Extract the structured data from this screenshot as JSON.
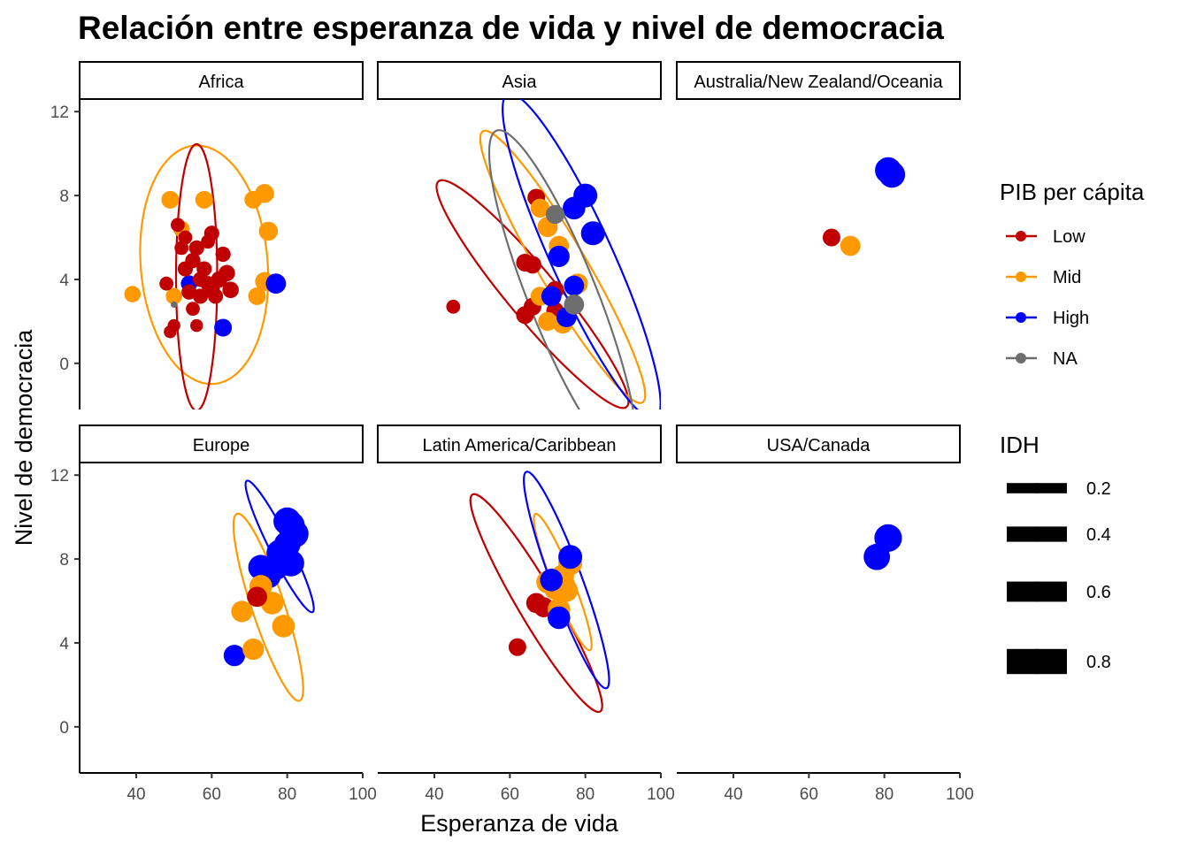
{
  "chart_data": {
    "type": "scatter",
    "title": "Relación entre esperanza de vida y nivel de democracia",
    "xlabel": "Esperanza de vida",
    "ylabel": "Nivel de democracia",
    "xlim": [
      25,
      100
    ],
    "ylim": [
      -2.2,
      12.6
    ],
    "x_ticks": [
      40,
      60,
      80,
      100
    ],
    "y_ticks": [
      0,
      4,
      8,
      12
    ],
    "grid": false,
    "legend_position": "right",
    "color_legend": {
      "title": "PIB per cápita",
      "entries": [
        {
          "label": "Low",
          "color": "#c00000"
        },
        {
          "label": "Mid",
          "color": "#ff9900"
        },
        {
          "label": "High",
          "color": "#0000ff"
        },
        {
          "label": "NA",
          "color": "#6e6e6e"
        }
      ]
    },
    "size_legend": {
      "title": "IDH",
      "entries": [
        {
          "label": "0.2",
          "value": 0.2
        },
        {
          "label": "0.4",
          "value": 0.4
        },
        {
          "label": "0.6",
          "value": 0.6
        },
        {
          "label": "0.8",
          "value": 0.8
        }
      ]
    },
    "panels": [
      {
        "name": "Africa",
        "points": [
          {
            "g": "Mid",
            "x": 39,
            "y": 3.3,
            "s": 0.45
          },
          {
            "g": "Mid",
            "x": 49,
            "y": 7.8,
            "s": 0.5
          },
          {
            "g": "Mid",
            "x": 58,
            "y": 7.8,
            "s": 0.5
          },
          {
            "g": "Mid",
            "x": 71,
            "y": 7.8,
            "s": 0.5
          },
          {
            "g": "Mid",
            "x": 74,
            "y": 8.1,
            "s": 0.55
          },
          {
            "g": "Mid",
            "x": 75,
            "y": 6.3,
            "s": 0.55
          },
          {
            "g": "Mid",
            "x": 74,
            "y": 3.9,
            "s": 0.55
          },
          {
            "g": "Mid",
            "x": 72,
            "y": 3.2,
            "s": 0.5
          },
          {
            "g": "Mid",
            "x": 50,
            "y": 3.2,
            "s": 0.45
          },
          {
            "g": "Mid",
            "x": 52,
            "y": 6.4,
            "s": 0.45
          },
          {
            "g": "High",
            "x": 77,
            "y": 3.8,
            "s": 0.6
          },
          {
            "g": "High",
            "x": 63,
            "y": 1.7,
            "s": 0.5
          },
          {
            "g": "High",
            "x": 54,
            "y": 3.8,
            "s": 0.45
          },
          {
            "g": "NA",
            "x": 50,
            "y": 2.8,
            "s": 0.05
          },
          {
            "g": "Low",
            "x": 48,
            "y": 3.8,
            "s": 0.35
          },
          {
            "g": "Low",
            "x": 49,
            "y": 1.5,
            "s": 0.3
          },
          {
            "g": "Low",
            "x": 50,
            "y": 1.8,
            "s": 0.3
          },
          {
            "g": "Low",
            "x": 51,
            "y": 6.6,
            "s": 0.35
          },
          {
            "g": "Low",
            "x": 52,
            "y": 5.5,
            "s": 0.35
          },
          {
            "g": "Low",
            "x": 53,
            "y": 6.0,
            "s": 0.35
          },
          {
            "g": "Low",
            "x": 53,
            "y": 4.5,
            "s": 0.4
          },
          {
            "g": "Low",
            "x": 54,
            "y": 3.4,
            "s": 0.4
          },
          {
            "g": "Low",
            "x": 55,
            "y": 4.9,
            "s": 0.4
          },
          {
            "g": "Low",
            "x": 55,
            "y": 2.6,
            "s": 0.35
          },
          {
            "g": "Low",
            "x": 56,
            "y": 1.8,
            "s": 0.3
          },
          {
            "g": "Low",
            "x": 56,
            "y": 5.5,
            "s": 0.4
          },
          {
            "g": "Low",
            "x": 57,
            "y": 3.2,
            "s": 0.4
          },
          {
            "g": "Low",
            "x": 58,
            "y": 4.5,
            "s": 0.4
          },
          {
            "g": "Low",
            "x": 59,
            "y": 3.8,
            "s": 0.4
          },
          {
            "g": "Low",
            "x": 59,
            "y": 5.8,
            "s": 0.35
          },
          {
            "g": "Low",
            "x": 60,
            "y": 6.2,
            "s": 0.4
          },
          {
            "g": "Low",
            "x": 61,
            "y": 3.2,
            "s": 0.4
          },
          {
            "g": "Low",
            "x": 62,
            "y": 4.0,
            "s": 0.45
          },
          {
            "g": "Low",
            "x": 63,
            "y": 5.2,
            "s": 0.4
          },
          {
            "g": "Low",
            "x": 64,
            "y": 4.3,
            "s": 0.45
          },
          {
            "g": "Low",
            "x": 65,
            "y": 3.5,
            "s": 0.45
          },
          {
            "g": "Low",
            "x": 60,
            "y": 3.6,
            "s": 0.45
          },
          {
            "g": "Low",
            "x": 57,
            "y": 4.0,
            "s": 0.4
          }
        ],
        "ellipses": [
          {
            "g": "Mid",
            "cx": 58,
            "cy": 4.7,
            "rx": 37,
            "ry": 11.4,
            "rot": 12
          },
          {
            "g": "Low",
            "cx": 56,
            "cy": 4.1,
            "rx": 12,
            "ry": 12.7,
            "rot": -2
          }
        ]
      },
      {
        "name": "Asia",
        "points": [
          {
            "g": "Low",
            "x": 45,
            "y": 2.7,
            "s": 0.35
          },
          {
            "g": "Low",
            "x": 64,
            "y": 4.8,
            "s": 0.5
          },
          {
            "g": "Low",
            "x": 67,
            "y": 7.9,
            "s": 0.5
          },
          {
            "g": "Low",
            "x": 66,
            "y": 4.7,
            "s": 0.5
          },
          {
            "g": "Low",
            "x": 64,
            "y": 2.3,
            "s": 0.5
          },
          {
            "g": "Low",
            "x": 66,
            "y": 2.7,
            "s": 0.5
          },
          {
            "g": "Low",
            "x": 72,
            "y": 3.5,
            "s": 0.5
          },
          {
            "g": "Low",
            "x": 72,
            "y": 2.5,
            "s": 0.5
          },
          {
            "g": "Mid",
            "x": 68,
            "y": 7.4,
            "s": 0.55
          },
          {
            "g": "Mid",
            "x": 70,
            "y": 6.5,
            "s": 0.6
          },
          {
            "g": "Mid",
            "x": 73,
            "y": 5.6,
            "s": 0.6
          },
          {
            "g": "Mid",
            "x": 70,
            "y": 2.0,
            "s": 0.55
          },
          {
            "g": "Mid",
            "x": 74,
            "y": 1.9,
            "s": 0.6
          },
          {
            "g": "Mid",
            "x": 78,
            "y": 3.8,
            "s": 0.6
          },
          {
            "g": "Mid",
            "x": 68,
            "y": 3.2,
            "s": 0.55
          },
          {
            "g": "High",
            "x": 77,
            "y": 7.4,
            "s": 0.7
          },
          {
            "g": "High",
            "x": 80,
            "y": 8.0,
            "s": 0.75
          },
          {
            "g": "High",
            "x": 82,
            "y": 6.2,
            "s": 0.75
          },
          {
            "g": "High",
            "x": 73,
            "y": 5.1,
            "s": 0.65
          },
          {
            "g": "High",
            "x": 71,
            "y": 3.2,
            "s": 0.6
          },
          {
            "g": "High",
            "x": 77,
            "y": 3.7,
            "s": 0.6
          },
          {
            "g": "High",
            "x": 75,
            "y": 2.2,
            "s": 0.6
          },
          {
            "g": "NA",
            "x": 72,
            "y": 7.1,
            "s": 0.55
          },
          {
            "g": "NA",
            "x": 77,
            "y": 2.8,
            "s": 0.6
          }
        ],
        "ellipses": [
          {
            "g": "Low",
            "cx": 66,
            "cy": 3.3,
            "rx": 14.5,
            "ry": 14,
            "rot": 1.2
          },
          {
            "g": "Mid",
            "cx": 74,
            "cy": 4.6,
            "rx": 14,
            "ry": 15,
            "rot": 1.7
          },
          {
            "g": "High",
            "cx": 79,
            "cy": 5.1,
            "rx": 18,
            "ry": 17,
            "rot": 2.2
          },
          {
            "g": "NA",
            "cx": 74,
            "cy": 3.2,
            "rx": 20,
            "ry": 17,
            "rot": 2.5
          }
        ]
      },
      {
        "name": "Australia/New Zealand/Oceania",
        "points": [
          {
            "g": "Low",
            "x": 66,
            "y": 6.0,
            "s": 0.5
          },
          {
            "g": "Mid",
            "x": 71,
            "y": 5.6,
            "s": 0.6
          },
          {
            "g": "High",
            "x": 81,
            "y": 9.2,
            "s": 0.85
          },
          {
            "g": "High",
            "x": 82,
            "y": 9.0,
            "s": 0.85
          }
        ],
        "ellipses": []
      },
      {
        "name": "Europe",
        "points": [
          {
            "g": "High",
            "x": 66,
            "y": 3.4,
            "s": 0.65
          },
          {
            "g": "High",
            "x": 73,
            "y": 7.6,
            "s": 0.8
          },
          {
            "g": "High",
            "x": 75,
            "y": 7.2,
            "s": 0.8
          },
          {
            "g": "High",
            "x": 77,
            "y": 7.6,
            "s": 0.8
          },
          {
            "g": "High",
            "x": 78,
            "y": 8.3,
            "s": 0.85
          },
          {
            "g": "High",
            "x": 80,
            "y": 8.7,
            "s": 0.85
          },
          {
            "g": "High",
            "x": 81,
            "y": 7.8,
            "s": 0.85
          },
          {
            "g": "High",
            "x": 80,
            "y": 9.8,
            "s": 0.9
          },
          {
            "g": "High",
            "x": 82,
            "y": 9.2,
            "s": 0.9
          },
          {
            "g": "High",
            "x": 81,
            "y": 9.6,
            "s": 0.9
          },
          {
            "g": "Mid",
            "x": 68,
            "y": 5.5,
            "s": 0.65
          },
          {
            "g": "Mid",
            "x": 71,
            "y": 3.7,
            "s": 0.65
          },
          {
            "g": "Mid",
            "x": 73,
            "y": 6.7,
            "s": 0.7
          },
          {
            "g": "Mid",
            "x": 76,
            "y": 5.9,
            "s": 0.7
          },
          {
            "g": "Mid",
            "x": 79,
            "y": 4.8,
            "s": 0.7
          },
          {
            "g": "Low",
            "x": 72,
            "y": 6.2,
            "s": 0.6
          }
        ],
        "ellipses": [
          {
            "g": "Mid",
            "cx": 75,
            "cy": 5.7,
            "rx": 9.5,
            "ry": 9.4,
            "rot": 3
          },
          {
            "g": "High",
            "cx": 78,
            "cy": 8.6,
            "rx": 6,
            "ry": 7,
            "rot": 2
          }
        ]
      },
      {
        "name": "Latin America/Caribbean",
        "points": [
          {
            "g": "Low",
            "x": 62,
            "y": 3.8,
            "s": 0.5
          },
          {
            "g": "Low",
            "x": 67,
            "y": 5.9,
            "s": 0.6
          },
          {
            "g": "Low",
            "x": 69,
            "y": 5.7,
            "s": 0.6
          },
          {
            "g": "Mid",
            "x": 72,
            "y": 6.6,
            "s": 0.7
          },
          {
            "g": "Mid",
            "x": 74,
            "y": 7.2,
            "s": 0.7
          },
          {
            "g": "Mid",
            "x": 75,
            "y": 6.5,
            "s": 0.7
          },
          {
            "g": "Mid",
            "x": 76,
            "y": 7.8,
            "s": 0.75
          },
          {
            "g": "Mid",
            "x": 73,
            "y": 5.6,
            "s": 0.7
          },
          {
            "g": "Mid",
            "x": 70,
            "y": 6.9,
            "s": 0.7
          },
          {
            "g": "High",
            "x": 73,
            "y": 5.2,
            "s": 0.7
          },
          {
            "g": "High",
            "x": 76,
            "y": 8.1,
            "s": 0.75
          },
          {
            "g": "High",
            "x": 71,
            "y": 7.0,
            "s": 0.7
          }
        ],
        "ellipses": [
          {
            "g": "Low",
            "cx": 67,
            "cy": 5.9,
            "rx": 11,
            "ry": 12,
            "rot": 1.7
          },
          {
            "g": "Mid",
            "cx": 74,
            "cy": 6.9,
            "rx": 6,
            "ry": 7,
            "rot": 2.5
          },
          {
            "g": "High",
            "cx": 75,
            "cy": 7.0,
            "rx": 9,
            "ry": 11,
            "rot": 2.7
          }
        ]
      },
      {
        "name": "USA/Canada",
        "points": [
          {
            "g": "High",
            "x": 78,
            "y": 8.1,
            "s": 0.85
          },
          {
            "g": "High",
            "x": 81,
            "y": 9.0,
            "s": 0.9
          }
        ],
        "ellipses": []
      }
    ]
  }
}
